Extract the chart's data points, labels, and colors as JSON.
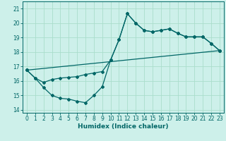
{
  "xlabel": "Humidex (Indice chaleur)",
  "bg_color": "#cdf0ea",
  "grid_color": "#aaddcc",
  "line_color": "#006666",
  "xlim": [
    -0.5,
    23.5
  ],
  "ylim": [
    13.8,
    21.5
  ],
  "xticks": [
    0,
    1,
    2,
    3,
    4,
    5,
    6,
    7,
    8,
    9,
    10,
    11,
    12,
    13,
    14,
    15,
    16,
    17,
    18,
    19,
    20,
    21,
    22,
    23
  ],
  "yticks": [
    14,
    15,
    16,
    17,
    18,
    19,
    20,
    21
  ],
  "series": [
    {
      "x": [
        0,
        1,
        2,
        3,
        4,
        5,
        6,
        7,
        8,
        9,
        10,
        11,
        12,
        13,
        14,
        15,
        16,
        17,
        18,
        19,
        20,
        21,
        22,
        23
      ],
      "y": [
        16.75,
        16.2,
        15.55,
        15.0,
        14.8,
        14.75,
        14.6,
        14.5,
        15.0,
        15.6,
        17.45,
        18.85,
        20.65,
        20.0,
        19.5,
        19.4,
        19.5,
        19.6,
        19.3,
        19.05,
        19.05,
        19.05,
        18.6,
        18.1
      ]
    },
    {
      "x": [
        0,
        1,
        2,
        3,
        4,
        5,
        6,
        7,
        8,
        9,
        10,
        11,
        12,
        13,
        14,
        15,
        16,
        17,
        18,
        19,
        20,
        21,
        22,
        23
      ],
      "y": [
        16.75,
        16.2,
        15.9,
        16.1,
        16.2,
        16.25,
        16.3,
        16.45,
        16.55,
        16.65,
        17.45,
        18.85,
        20.65,
        20.0,
        19.5,
        19.4,
        19.5,
        19.6,
        19.3,
        19.05,
        19.05,
        19.05,
        18.6,
        18.1
      ]
    },
    {
      "x": [
        0,
        23
      ],
      "y": [
        16.75,
        18.1
      ]
    }
  ]
}
